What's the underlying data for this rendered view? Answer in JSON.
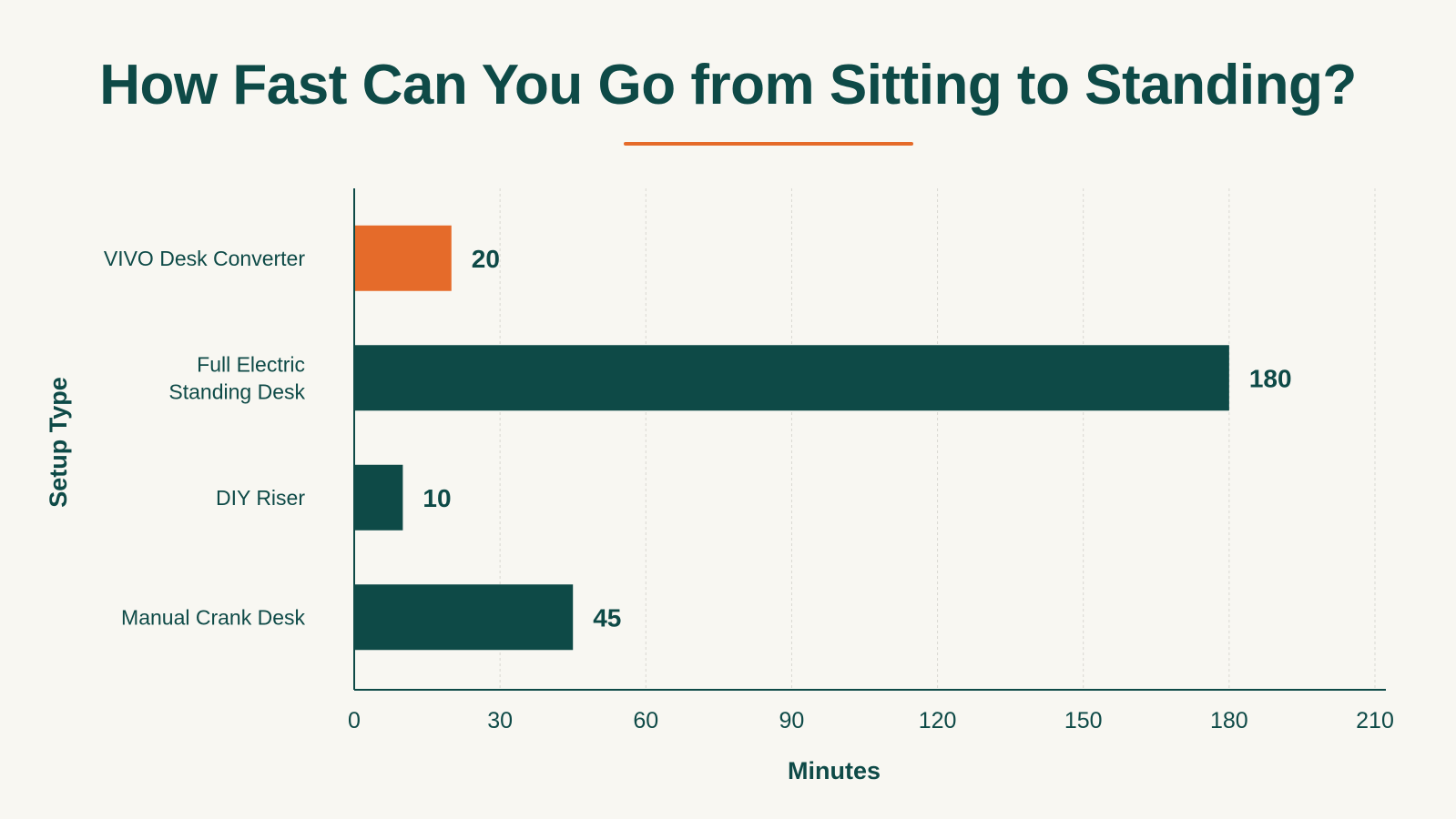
{
  "chart_data": {
    "type": "bar",
    "orientation": "horizontal",
    "title": "How Fast Can You Go from Sitting to Standing?",
    "xlabel": "Minutes",
    "ylabel": "Setup Type",
    "categories": [
      "VIVO Desk Converter",
      "Full Electric Standing Desk",
      "DIY Riser",
      "Manual Crank Desk"
    ],
    "category_lines": [
      [
        "VIVO Desk Converter"
      ],
      [
        "Full Electric",
        "Standing Desk"
      ],
      [
        "DIY Riser"
      ],
      [
        "Manual Crank Desk"
      ]
    ],
    "values": [
      20,
      180,
      10,
      45
    ],
    "value_labels": [
      "20",
      "180",
      "10",
      "45"
    ],
    "highlight_index": 0,
    "xlim": [
      0,
      210
    ],
    "xticks": [
      0,
      30,
      60,
      90,
      120,
      150,
      180,
      210
    ],
    "xtick_labels": [
      "0",
      "30",
      "60",
      "90",
      "120",
      "150",
      "180",
      "210"
    ],
    "grid": true,
    "legend": "none",
    "colors": {
      "highlight": "#e56b2a",
      "bar": "#0e4a47",
      "text": "#0e4a47",
      "grid": "#d9d8d2",
      "axis": "#0e4a47",
      "background": "#f8f7f2",
      "underline": "#e56b2a"
    }
  }
}
